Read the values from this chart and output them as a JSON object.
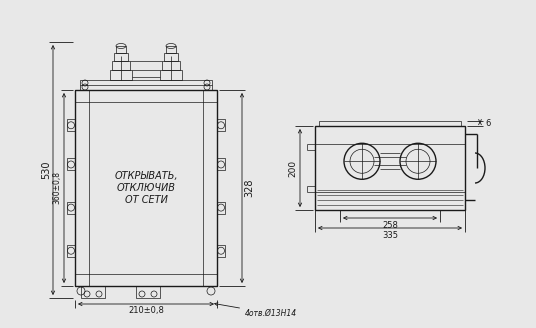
{
  "bg_color": "#e8e8e8",
  "line_color": "#1a1a1a",
  "dim_color": "#1a1a1a",
  "text_color": "#1a1a1a",
  "dimensions": {
    "height_530": "530",
    "height_360": "360±0,8",
    "width_210": "210±0,8",
    "height_328": "328",
    "width_258": "258",
    "width_335": "335",
    "height_200": "200",
    "dim_6": "6",
    "bolt": "4отв.Ø13Н14"
  },
  "label_open": "ОТКРЫВАТЬ,\nОТКЛЮЧИВ\nОТ СЕТИ"
}
